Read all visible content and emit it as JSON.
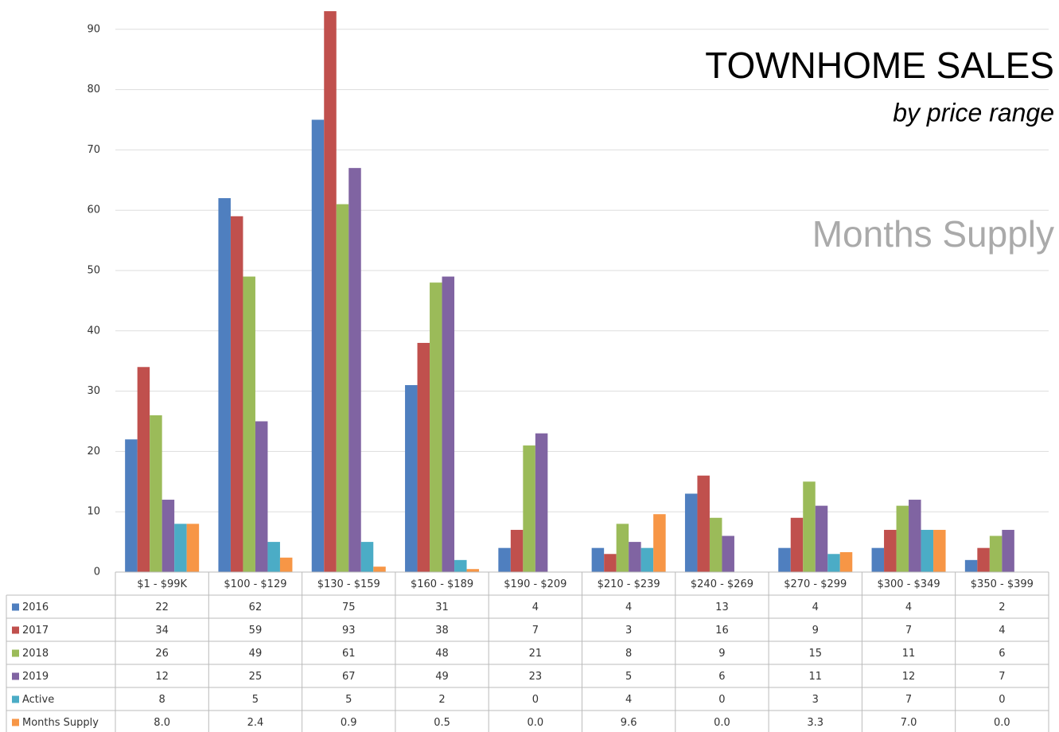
{
  "chart_data": {
    "type": "bar",
    "title": "TOWNHOME SALES",
    "subtitle": "by price range",
    "annotation": "Months Supply",
    "categories": [
      "$1 - $99K",
      "$100 - $129",
      "$130 - $159",
      "$160 - $189",
      "$190 - $209",
      "$210 - $239",
      "$240 - $269",
      "$270 - $299",
      "$300 - $349",
      "$350 - $399"
    ],
    "series": [
      {
        "name": "2016",
        "color": "#4f7fbf",
        "values": [
          22,
          62,
          75,
          31,
          4,
          4,
          13,
          4,
          4,
          2
        ]
      },
      {
        "name": "2017",
        "color": "#c0504d",
        "values": [
          34,
          59,
          93,
          38,
          7,
          3,
          16,
          9,
          7,
          4
        ]
      },
      {
        "name": "2018",
        "color": "#9bbb59",
        "values": [
          26,
          49,
          61,
          48,
          21,
          8,
          9,
          15,
          11,
          6
        ]
      },
      {
        "name": "2019",
        "color": "#8064a2",
        "values": [
          12,
          25,
          67,
          49,
          23,
          5,
          6,
          11,
          12,
          7
        ]
      },
      {
        "name": "Active",
        "color": "#4bacc6",
        "values": [
          8,
          5,
          5,
          2,
          0,
          4,
          0,
          3,
          7,
          0
        ]
      },
      {
        "name": "Months Supply",
        "color": "#f79646",
        "values": [
          8,
          2.4,
          0.9,
          0.5,
          0,
          9.6,
          0,
          3.3,
          7,
          0
        ],
        "value_labels": [
          "8.0",
          "2.4",
          "0.9",
          "0.5",
          "0.0",
          "9.6",
          "0.0",
          "3.3",
          "7.0",
          "0.0"
        ]
      }
    ],
    "ylim": [
      0,
      100
    ],
    "yticks": [
      0,
      10,
      20,
      30,
      40,
      50,
      60,
      70,
      80,
      90
    ],
    "grid": true
  }
}
